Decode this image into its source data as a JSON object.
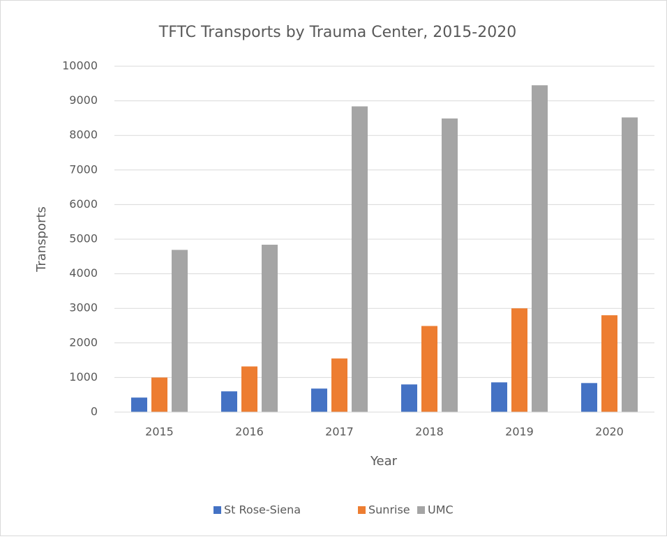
{
  "chart_data": {
    "type": "bar",
    "title": "TFTC Transports by Trauma Center, 2015-2020",
    "x_label": "Year",
    "y_label": "Transports",
    "categories": [
      "2015",
      "2016",
      "2017",
      "2018",
      "2019",
      "2020"
    ],
    "series": [
      {
        "name": "St Rose-Siena",
        "color": "#4472c4",
        "values": [
          420,
          600,
          680,
          800,
          860,
          840
        ]
      },
      {
        "name": "Sunrise",
        "color": "#ed7d31",
        "values": [
          1000,
          1320,
          1550,
          2490,
          3000,
          2800
        ]
      },
      {
        "name": "UMC",
        "color": "#a5a5a5",
        "values": [
          4690,
          4840,
          8840,
          8490,
          9450,
          8520
        ]
      }
    ],
    "ylim": [
      0,
      10000
    ],
    "yticks": [
      0,
      1000,
      2000,
      3000,
      4000,
      5000,
      6000,
      7000,
      8000,
      9000,
      10000
    ],
    "grid": true,
    "legend": "bottom"
  }
}
